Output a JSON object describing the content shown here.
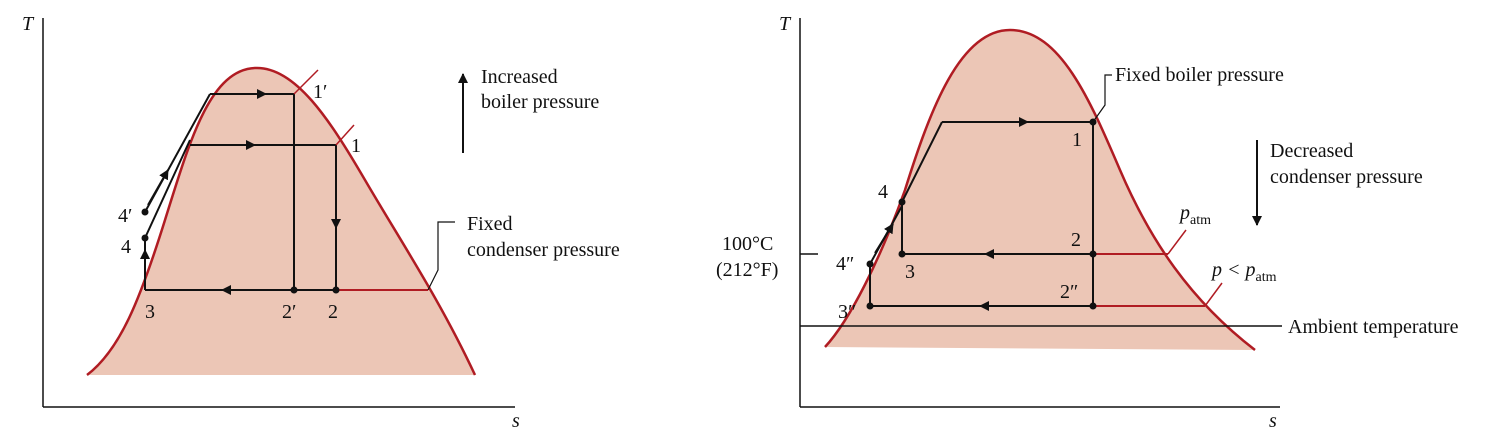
{
  "left_panel": {
    "y_axis": "T",
    "x_axis": "s",
    "points": {
      "p1p": "1′",
      "p1": "1",
      "p2p": "2′",
      "p2": "2",
      "p3": "3",
      "p4p": "4′",
      "p4": "4"
    },
    "annotations": {
      "increased_line1": "Increased",
      "increased_line2": "boiler pressure",
      "fixed_line1": "Fixed",
      "fixed_line2": "condenser pressure"
    }
  },
  "right_panel": {
    "y_axis": "T",
    "x_axis": "s",
    "points": {
      "p1": "1",
      "p2": "2",
      "p2pp": "2″",
      "p3": "3",
      "p3pp": "3″",
      "p4": "4",
      "p4pp": "4″"
    },
    "annotations": {
      "fixed_boiler": "Fixed boiler pressure",
      "decreased_line1": "Decreased",
      "decreased_line2": "condenser pressure",
      "temp_c": "100°C",
      "temp_f": "(212°F)",
      "p_atm_main": "p",
      "p_atm_sub": "atm",
      "p_less_main": "p < p",
      "p_less_sub": "atm",
      "ambient": "Ambient temperature"
    }
  },
  "colors": {
    "dome_fill": "#ecc6b6",
    "dome_line": "#b01c23",
    "cycle_line": "#111111"
  }
}
